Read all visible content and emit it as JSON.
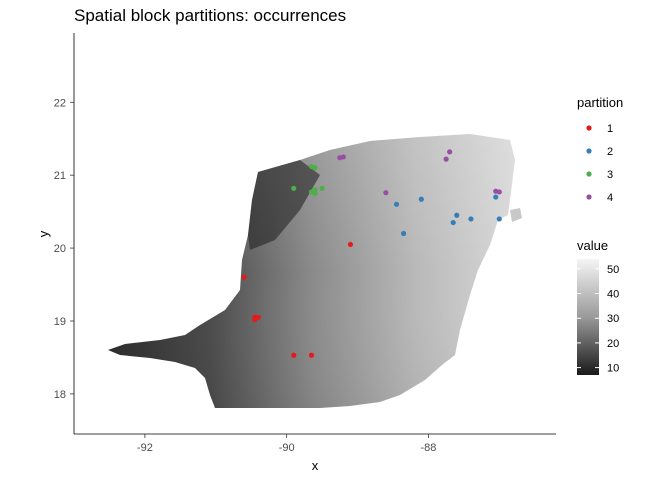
{
  "chart_data": {
    "type": "scatter",
    "title": "Spatial block partitions: occurrences",
    "xlabel": "x",
    "ylabel": "y",
    "xlim": [
      -93.0,
      -86.2
    ],
    "ylim": [
      17.45,
      22.95
    ],
    "x_ticks": [
      -92,
      -90,
      -88
    ],
    "x_tick_labels": [
      "-92",
      "-90",
      "-88"
    ],
    "y_ticks": [
      18,
      19,
      20,
      21,
      22
    ],
    "y_tick_labels": [
      "18",
      "19",
      "20",
      "21",
      "22"
    ],
    "grid": false,
    "legend_placement": "right",
    "raster_background": {
      "legend_title": "value",
      "scale": "grayscale",
      "breaks": [
        10,
        20,
        30,
        40,
        50
      ],
      "break_labels": [
        "10",
        "20",
        "30",
        "40",
        "50"
      ],
      "range": [
        7,
        54
      ]
    },
    "partition_legend_title": "partition",
    "series": [
      {
        "name": "1",
        "color": "#E41A1C",
        "points": [
          [
            -89.1,
            20.05
          ],
          [
            -90.6,
            19.6
          ],
          [
            -90.45,
            19.05
          ],
          [
            -90.4,
            19.05
          ],
          [
            -90.45,
            19.02
          ],
          [
            -89.9,
            18.53
          ],
          [
            -89.65,
            18.53
          ]
        ]
      },
      {
        "name": "2",
        "color": "#377EB8",
        "points": [
          [
            -88.1,
            20.67
          ],
          [
            -88.45,
            20.6
          ],
          [
            -88.35,
            20.2
          ],
          [
            -87.4,
            20.4
          ],
          [
            -87.6,
            20.45
          ],
          [
            -87.65,
            20.35
          ],
          [
            -87.05,
            20.7
          ],
          [
            -87.0,
            20.4
          ]
        ]
      },
      {
        "name": "3",
        "color": "#4DAF4A",
        "points": [
          [
            -89.6,
            21.1
          ],
          [
            -89.65,
            21.12
          ],
          [
            -89.9,
            20.82
          ],
          [
            -89.6,
            20.8
          ],
          [
            -89.6,
            20.75
          ],
          [
            -89.5,
            20.82
          ],
          [
            -89.65,
            20.77
          ]
        ]
      },
      {
        "name": "4",
        "color": "#984EA3",
        "points": [
          [
            -89.2,
            21.25
          ],
          [
            -89.25,
            21.24
          ],
          [
            -88.6,
            20.76
          ],
          [
            -87.75,
            21.22
          ],
          [
            -87.7,
            21.32
          ],
          [
            -87.05,
            20.78
          ],
          [
            -87.0,
            20.77
          ]
        ]
      }
    ]
  }
}
